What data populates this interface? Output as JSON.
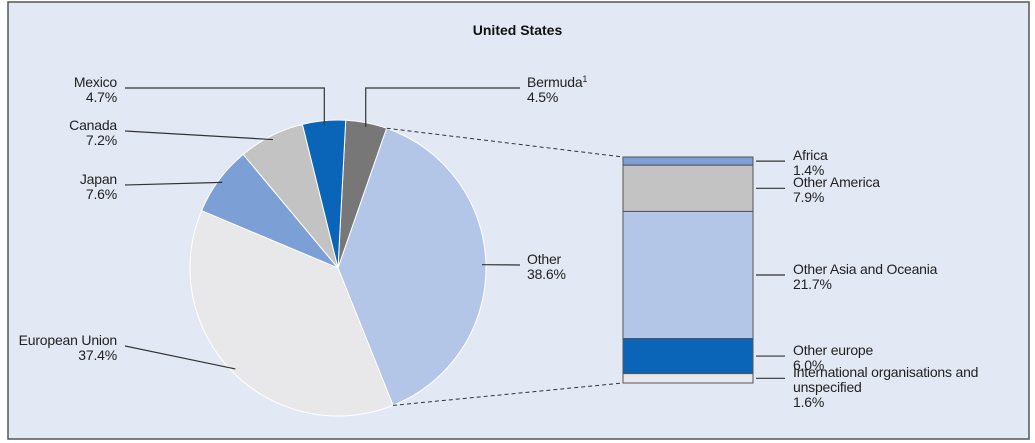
{
  "chart_data": {
    "type": "pie",
    "title": "United States",
    "categories": [
      "Bermuda",
      "Other",
      "European Union",
      "Japan",
      "Canada",
      "Mexico"
    ],
    "category_notes": [
      "1",
      null,
      null,
      null,
      null,
      null
    ],
    "values": [
      4.5,
      38.6,
      37.4,
      7.6,
      7.2,
      4.7
    ],
    "value_labels": [
      "4.5%",
      "38.6%",
      "37.4%",
      "7.6%",
      "7.2%",
      "4.7%"
    ],
    "colors": [
      "#777777",
      "#b3c6e7",
      "#e8e8ea",
      "#7c9fd6",
      "#c3c3c3",
      "#0a64b8"
    ],
    "breakdown": {
      "categories": [
        "Africa",
        "Other America",
        "Other Asia and Oceania",
        "Other europe",
        "International organisations and unspecified"
      ],
      "values": [
        1.4,
        7.9,
        21.7,
        6.0,
        1.6
      ],
      "value_labels": [
        "1.4%",
        "7.9%",
        "21.7%",
        "6.0%",
        "1.6%"
      ],
      "colors": [
        "#7c9fd6",
        "#c3c3c3",
        "#b3c6e7",
        "#0a64b8",
        "#e8e8ea"
      ]
    }
  }
}
